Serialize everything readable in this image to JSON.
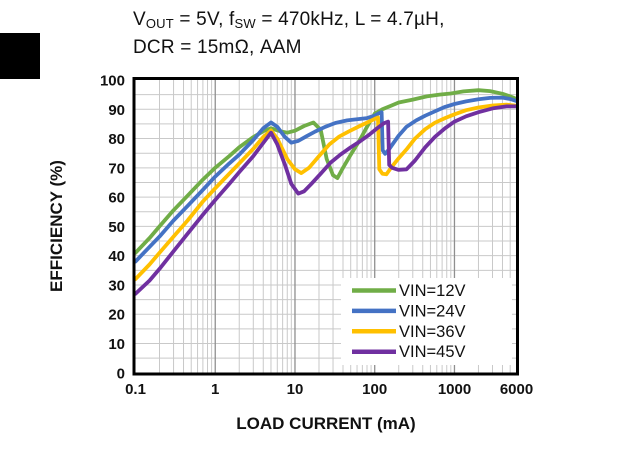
{
  "title": {
    "line1_parts": [
      {
        "text": "V"
      },
      {
        "text": "OUT",
        "sub": true
      },
      {
        "text": " = 5V, f"
      },
      {
        "text": "SW",
        "sub": true
      },
      {
        "text": " = 470kHz, L = 4.7µH,"
      }
    ],
    "line2": "DCR = 15mΩ, AAM"
  },
  "chart_data": {
    "type": "line",
    "xlabel": "LOAD CURRENT (mA)",
    "ylabel": "EFFICIENCY (%)",
    "x_scale": "log",
    "xlim": [
      0.1,
      6000
    ],
    "ylim": [
      0,
      100
    ],
    "x_ticks": [
      "0.1",
      "1",
      "10",
      "100",
      "1000",
      "6000"
    ],
    "y_ticks": [
      0,
      10,
      20,
      30,
      40,
      50,
      60,
      70,
      80,
      90,
      100
    ],
    "grid": true,
    "grid_color": "#c9c9c9",
    "grid_major_color": "#8f8f8f",
    "frame_color": "#000000",
    "legend_position": "lower right",
    "series": [
      {
        "name": "VIN=12V",
        "color": "#70AD47",
        "points": [
          [
            0.1,
            41
          ],
          [
            0.15,
            46
          ],
          [
            0.2,
            50
          ],
          [
            0.3,
            55.5
          ],
          [
            0.45,
            60.5
          ],
          [
            0.7,
            66
          ],
          [
            1,
            70
          ],
          [
            1.5,
            74
          ],
          [
            2,
            77
          ],
          [
            3,
            80.5
          ],
          [
            4,
            82.5
          ],
          [
            5,
            83.5
          ],
          [
            6.5,
            82.5
          ],
          [
            8,
            82
          ],
          [
            10,
            82.7
          ],
          [
            13,
            84.3
          ],
          [
            17,
            85.5
          ],
          [
            21,
            83
          ],
          [
            25,
            73
          ],
          [
            30,
            67.5
          ],
          [
            34,
            66.5
          ],
          [
            40,
            70
          ],
          [
            50,
            74.5
          ],
          [
            65,
            79.5
          ],
          [
            80,
            84
          ],
          [
            100,
            88.5
          ],
          [
            125,
            90
          ],
          [
            160,
            91.2
          ],
          [
            200,
            92.3
          ],
          [
            300,
            93.3
          ],
          [
            450,
            94.4
          ],
          [
            650,
            95
          ],
          [
            900,
            95.4
          ],
          [
            1300,
            96.1
          ],
          [
            2000,
            96.5
          ],
          [
            2800,
            96.2
          ],
          [
            4000,
            95.3
          ],
          [
            5000,
            94.4
          ],
          [
            6000,
            93.5
          ]
        ]
      },
      {
        "name": "VIN=24V",
        "color": "#4472C4",
        "points": [
          [
            0.1,
            38
          ],
          [
            0.15,
            43
          ],
          [
            0.2,
            46.5
          ],
          [
            0.3,
            52
          ],
          [
            0.45,
            57
          ],
          [
            0.7,
            62.5
          ],
          [
            1,
            67
          ],
          [
            1.5,
            71.5
          ],
          [
            2,
            74.5
          ],
          [
            3,
            79.5
          ],
          [
            4,
            83.5
          ],
          [
            5,
            85.5
          ],
          [
            6,
            84
          ],
          [
            7.5,
            80.5
          ],
          [
            9,
            78.6
          ],
          [
            11,
            79.2
          ],
          [
            14,
            80.8
          ],
          [
            18,
            82.4
          ],
          [
            24,
            84
          ],
          [
            32,
            85.3
          ],
          [
            45,
            86.2
          ],
          [
            60,
            86.6
          ],
          [
            80,
            87
          ],
          [
            100,
            87.8
          ],
          [
            112,
            88.6
          ],
          [
            122,
            89
          ],
          [
            126,
            76
          ],
          [
            135,
            74.8
          ],
          [
            150,
            76.2
          ],
          [
            170,
            78.3
          ],
          [
            200,
            81
          ],
          [
            250,
            84
          ],
          [
            330,
            86.2
          ],
          [
            430,
            87.8
          ],
          [
            570,
            89.3
          ],
          [
            760,
            90.8
          ],
          [
            1000,
            91.8
          ],
          [
            1400,
            92.7
          ],
          [
            2000,
            93.4
          ],
          [
            2800,
            93.9
          ],
          [
            4000,
            94
          ],
          [
            5000,
            93.5
          ],
          [
            6000,
            92.8
          ]
        ]
      },
      {
        "name": "VIN=36V",
        "color": "#FFC000",
        "points": [
          [
            0.1,
            32
          ],
          [
            0.15,
            37
          ],
          [
            0.2,
            41
          ],
          [
            0.3,
            46.5
          ],
          [
            0.45,
            52
          ],
          [
            0.7,
            58.5
          ],
          [
            1,
            63
          ],
          [
            1.5,
            68
          ],
          [
            2,
            71.5
          ],
          [
            3,
            76.5
          ],
          [
            4,
            80.5
          ],
          [
            5,
            82.8
          ],
          [
            6,
            80
          ],
          [
            8,
            73
          ],
          [
            10,
            69.5
          ],
          [
            12,
            68.2
          ],
          [
            15,
            70
          ],
          [
            20,
            74
          ],
          [
            27,
            78
          ],
          [
            36,
            80.7
          ],
          [
            48,
            82.5
          ],
          [
            65,
            84.3
          ],
          [
            85,
            85.8
          ],
          [
            100,
            86.7
          ],
          [
            110,
            87.2
          ],
          [
            114,
            69.5
          ],
          [
            125,
            68
          ],
          [
            140,
            67.8
          ],
          [
            160,
            70
          ],
          [
            200,
            73.3
          ],
          [
            250,
            76.3
          ],
          [
            320,
            80
          ],
          [
            430,
            83.2
          ],
          [
            570,
            85.4
          ],
          [
            760,
            87
          ],
          [
            1000,
            88.3
          ],
          [
            1400,
            89.7
          ],
          [
            2000,
            90.6
          ],
          [
            3000,
            91.3
          ],
          [
            4500,
            91.6
          ],
          [
            6000,
            91.2
          ]
        ]
      },
      {
        "name": "VIN=45V",
        "color": "#7030A0",
        "points": [
          [
            0.1,
            27
          ],
          [
            0.15,
            31.5
          ],
          [
            0.2,
            35.5
          ],
          [
            0.3,
            41.5
          ],
          [
            0.45,
            47.5
          ],
          [
            0.7,
            54
          ],
          [
            1,
            59
          ],
          [
            1.5,
            64.5
          ],
          [
            2,
            68.5
          ],
          [
            3,
            74
          ],
          [
            4,
            78.5
          ],
          [
            5,
            82
          ],
          [
            6,
            78
          ],
          [
            7.5,
            71
          ],
          [
            9,
            64.5
          ],
          [
            11,
            61.2
          ],
          [
            13,
            62
          ],
          [
            16,
            64.5
          ],
          [
            21,
            68
          ],
          [
            28,
            71.8
          ],
          [
            37,
            74.5
          ],
          [
            50,
            77
          ],
          [
            65,
            79
          ],
          [
            85,
            81.3
          ],
          [
            105,
            83.3
          ],
          [
            130,
            85.2
          ],
          [
            147,
            85.8
          ],
          [
            152,
            71
          ],
          [
            165,
            70
          ],
          [
            200,
            69.3
          ],
          [
            250,
            69.5
          ],
          [
            320,
            72.5
          ],
          [
            430,
            77
          ],
          [
            570,
            80.6
          ],
          [
            760,
            83.5
          ],
          [
            1000,
            85.8
          ],
          [
            1400,
            87.6
          ],
          [
            2000,
            89
          ],
          [
            3000,
            90.3
          ],
          [
            4500,
            91
          ],
          [
            6000,
            91
          ]
        ]
      }
    ]
  }
}
